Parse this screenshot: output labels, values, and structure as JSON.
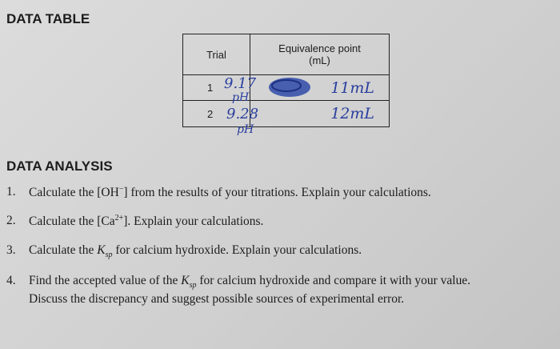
{
  "header": {
    "title": "DATA TABLE"
  },
  "table": {
    "columns": [
      "Trial",
      [
        "Equivalence point",
        "(mL)"
      ]
    ],
    "rows": [
      [
        "1",
        "11mL"
      ],
      [
        "2",
        "12mL"
      ]
    ]
  },
  "annotations": {
    "row1_ph": "9.17",
    "row1_ph_label": "pH",
    "row2_ph": "9.28",
    "row2_ph_label": "pH"
  },
  "analysis": {
    "title": "DATA ANALYSIS",
    "questions": [
      {
        "number": "1.",
        "before": "Calculate the [OH",
        "sup": "−",
        "after": "] from the results of your titrations. Explain your calculations."
      },
      {
        "number": "2.",
        "before": "Calculate the [Ca",
        "sup": "2+",
        "after": "]. Explain your calculations."
      },
      {
        "number": "3.",
        "before": "Calculate the ",
        "k": "K",
        "sub": "sp",
        "after": " for calcium hydroxide. Explain your calculations."
      },
      {
        "number": "4.",
        "before": "Find the accepted value of the ",
        "k": "K",
        "sub": "sp",
        "after": " for calcium hydroxide and compare it with your value.",
        "line2": "Discuss the discrepancy and suggest possible sources of experimental error."
      }
    ]
  }
}
